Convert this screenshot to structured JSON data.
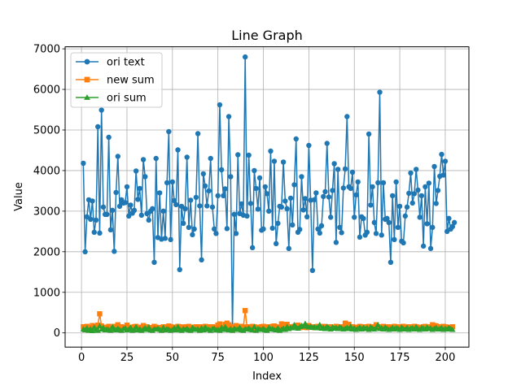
{
  "chart_data": {
    "type": "line",
    "title": "Line Graph",
    "xlabel": "Index",
    "ylabel": "Value",
    "xlim": [
      -9,
      213
    ],
    "ylim": [
      -350,
      7050
    ],
    "grid": true,
    "legend_placement": "top-left",
    "x_ticks": [
      0,
      25,
      50,
      75,
      100,
      125,
      150,
      175,
      200
    ],
    "y_ticks": [
      0,
      1000,
      2000,
      3000,
      4000,
      5000,
      6000,
      7000
    ],
    "series": [
      {
        "name": "ori text",
        "color": "#1f77b4",
        "marker": "circle",
        "x_start": 1,
        "values": [
          4180,
          2000,
          2860,
          3280,
          2800,
          3250,
          2480,
          2780,
          5080,
          2460,
          5490,
          3100,
          2920,
          2920,
          4820,
          2540,
          3020,
          2010,
          3460,
          4350,
          3120,
          3280,
          3200,
          3210,
          3600,
          2880,
          3150,
          2950,
          3020,
          3990,
          3290,
          3560,
          2900,
          4270,
          3850,
          2940,
          2780,
          3000,
          3060,
          1740,
          4300,
          2350,
          3450,
          2310,
          3000,
          2330,
          3700,
          4960,
          2300,
          3720,
          3260,
          3160,
          4510,
          1560,
          3120,
          2700,
          3060,
          4330,
          2600,
          3270,
          2420,
          2560,
          3340,
          4910,
          3130,
          1800,
          3920,
          3620,
          3130,
          3500,
          4300,
          3100,
          2560,
          2450,
          3380,
          5620,
          4020,
          3380,
          3550,
          2570,
          5330,
          3850,
          100,
          2920,
          2450,
          4390,
          2940,
          3180,
          2900,
          6800,
          2880,
          4380,
          3190,
          2100,
          4000,
          3560,
          3050,
          3820,
          2530,
          2560,
          3600,
          3430,
          3000,
          4480,
          2580,
          4230,
          2200,
          2700,
          3120,
          3100,
          4210,
          3250,
          3060,
          2080,
          3320,
          2660,
          3650,
          4780,
          2480,
          2550,
          3850,
          3030,
          3310,
          2860,
          4620,
          3270,
          1540,
          3280,
          3450,
          2560,
          2460,
          2640,
          3360,
          3480,
          4670,
          3350,
          2850,
          3510,
          4170,
          2230,
          4030,
          2600,
          2470,
          3570,
          4040,
          5330,
          3600,
          3560,
          3960,
          2850,
          3400,
          3720,
          2360,
          2860,
          2820,
          2410,
          2480,
          4900,
          3150,
          3600,
          2720,
          2450,
          3700,
          5930,
          2410,
          3700,
          2800,
          2820,
          2720,
          1740,
          3380,
          2300,
          3720,
          2600,
          3120,
          2260,
          2220,
          2880,
          3100,
          3440,
          3940,
          3200,
          3430,
          4030,
          3520,
          2850,
          3380,
          2140,
          3600,
          2690,
          3690,
          2080,
          2600,
          4100,
          3190,
          3510,
          3860,
          4400,
          3890,
          4230,
          2500,
          2820,
          2560,
          2620,
          2720
        ]
      },
      {
        "name": "new sum",
        "color": "#ff7f0e",
        "marker": "square",
        "x_start": 1,
        "values": [
          150,
          140,
          160,
          100,
          130,
          180,
          150,
          120,
          190,
          470,
          170,
          130,
          110,
          140,
          160,
          120,
          100,
          160,
          130,
          200,
          140,
          150,
          130,
          110,
          190,
          140,
          130,
          120,
          150,
          160,
          120,
          100,
          140,
          180,
          130,
          150,
          130,
          120,
          130,
          160,
          140,
          130,
          110,
          130,
          150,
          140,
          130,
          170,
          150,
          130,
          140,
          120,
          160,
          150,
          120,
          130,
          150,
          140,
          160,
          130,
          120,
          140,
          150,
          130,
          150,
          120,
          140,
          160,
          130,
          150,
          140,
          150,
          120,
          130,
          190,
          220,
          140,
          130,
          210,
          240,
          200,
          150,
          140,
          130,
          180,
          150,
          140,
          160,
          130,
          550,
          150,
          140,
          130,
          160,
          150,
          130,
          140,
          120,
          150,
          160,
          130,
          140,
          150,
          130,
          160,
          170,
          150,
          130,
          120,
          220,
          200,
          190,
          210,
          150,
          140,
          130,
          160,
          150,
          190,
          130,
          150,
          160,
          140,
          130,
          180,
          150,
          140,
          130,
          150,
          160,
          140,
          130,
          160,
          150,
          130,
          140,
          150,
          120,
          130,
          160,
          150,
          140,
          130,
          150,
          240,
          200,
          210,
          130,
          150,
          140,
          130,
          120,
          160,
          150,
          130,
          140,
          150,
          160,
          140,
          130,
          150,
          200,
          140,
          130,
          150,
          160,
          130,
          140,
          150,
          130,
          120,
          160,
          150,
          140,
          130,
          150,
          160,
          120,
          130,
          150,
          140,
          130,
          160,
          150,
          140,
          130,
          120,
          150,
          160,
          140,
          130,
          150,
          200,
          180,
          170,
          150,
          140,
          130,
          160,
          150,
          140,
          130,
          120,
          150
        ]
      },
      {
        "name": "ori sum",
        "color": "#2ca02c",
        "marker": "triangle",
        "x_start": 1,
        "values": [
          90,
          70,
          120,
          60,
          100,
          50,
          140,
          80,
          60,
          170,
          90,
          130,
          70,
          100,
          80,
          60,
          150,
          90,
          70,
          110,
          80,
          60,
          100,
          120,
          70,
          90,
          130,
          60,
          80,
          150,
          70,
          100,
          60,
          90,
          120,
          80,
          140,
          70,
          60,
          100,
          90,
          110,
          80,
          60,
          130,
          70,
          100,
          90,
          60,
          80,
          120,
          70,
          150,
          90,
          60,
          100,
          80,
          110,
          70,
          60,
          130,
          90,
          80,
          100,
          60,
          120,
          70,
          140,
          90,
          80,
          60,
          100,
          110,
          70,
          90,
          60,
          130,
          80,
          150,
          90,
          70,
          100,
          60,
          110,
          80,
          90,
          130,
          70,
          60,
          100,
          90,
          120,
          80,
          70,
          150,
          60,
          100,
          90,
          80,
          110,
          70,
          60,
          130,
          90,
          100,
          80,
          70,
          120,
          60,
          90,
          110,
          80,
          150,
          100,
          130,
          120,
          200,
          140,
          110,
          150,
          180,
          160,
          230,
          170,
          140,
          160,
          130,
          150,
          120,
          140,
          200,
          110,
          130,
          100,
          160,
          120,
          90,
          140,
          110,
          130,
          100,
          150,
          120,
          90,
          110,
          130,
          100,
          160,
          90,
          120,
          80,
          110,
          140,
          90,
          130,
          100,
          120,
          80,
          150,
          110,
          90,
          130,
          200,
          100,
          120,
          90,
          140,
          110,
          80,
          100,
          130,
          90,
          120,
          110,
          80,
          140,
          100,
          90,
          130,
          80,
          110,
          120,
          90,
          150,
          100,
          80,
          130,
          110,
          90,
          140,
          100,
          120,
          80,
          110,
          130,
          90,
          100,
          120,
          80,
          110,
          90,
          130,
          100,
          80
        ]
      }
    ]
  }
}
